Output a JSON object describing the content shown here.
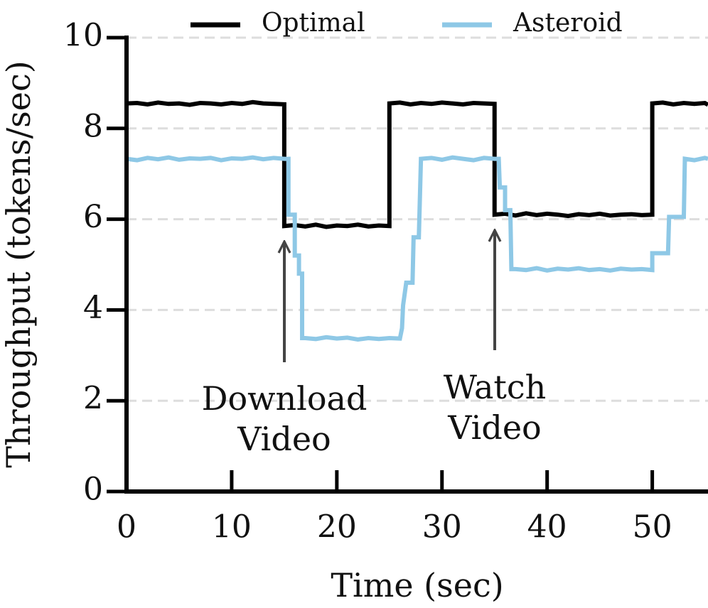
{
  "chart_data": {
    "type": "line",
    "xlabel": "Time (sec)",
    "ylabel": "Throughput (tokens/sec)",
    "xlim": [
      0,
      55.3
    ],
    "ylim": [
      0,
      10
    ],
    "xticks": [
      0,
      10,
      20,
      30,
      40,
      50
    ],
    "yticks": [
      0,
      2,
      4,
      6,
      8,
      10
    ],
    "grid": true,
    "legend": "top",
    "series": [
      {
        "name": "Optimal",
        "color": "#000000",
        "x": [
          0,
          1,
          2,
          3,
          4,
          5,
          6,
          7,
          8,
          9,
          10,
          11,
          12,
          13,
          14,
          15,
          15,
          16,
          17,
          18,
          19,
          20,
          21,
          22,
          23,
          24,
          25,
          25,
          26,
          27,
          28,
          29,
          30,
          31,
          32,
          33,
          34,
          35,
          35,
          36,
          37,
          38,
          39,
          40,
          41,
          42,
          43,
          44,
          45,
          46,
          47,
          48,
          49,
          50,
          50,
          51,
          52,
          53,
          54,
          55,
          55.3
        ],
        "values": [
          8.55,
          8.56,
          8.53,
          8.57,
          8.54,
          8.55,
          8.52,
          8.56,
          8.55,
          8.53,
          8.56,
          8.54,
          8.58,
          8.55,
          8.54,
          8.53,
          5.85,
          5.87,
          5.84,
          5.88,
          5.83,
          5.86,
          5.85,
          5.88,
          5.84,
          5.86,
          5.85,
          8.55,
          8.57,
          8.53,
          8.56,
          8.54,
          8.57,
          8.55,
          8.53,
          8.56,
          8.55,
          8.54,
          6.1,
          6.12,
          6.08,
          6.13,
          6.09,
          6.12,
          6.1,
          6.07,
          6.11,
          6.09,
          6.12,
          6.08,
          6.1,
          6.11,
          6.09,
          6.1,
          8.55,
          8.57,
          8.53,
          8.56,
          8.54,
          8.56,
          8.52
        ]
      },
      {
        "name": "Asteroid",
        "color": "#8ec8e6",
        "x": [
          0,
          1,
          2,
          3,
          4,
          5,
          6,
          7,
          8,
          9,
          10,
          11,
          12,
          13,
          14,
          15,
          15.4,
          15.4,
          16,
          16,
          16.4,
          16.4,
          16.7,
          16.7,
          17,
          18,
          19,
          20,
          21,
          22,
          23,
          24,
          25,
          26,
          26.2,
          26.3,
          26.6,
          27.2,
          27.3,
          27.8,
          28,
          29,
          30,
          31,
          32,
          33,
          34,
          35,
          35.4,
          35.5,
          36,
          36,
          36.5,
          36.6,
          37,
          38,
          39,
          40,
          41,
          42,
          43,
          44,
          45,
          46,
          47,
          48,
          49,
          50,
          50,
          51.5,
          51.6,
          53,
          53.1,
          54,
          55,
          55.3
        ],
        "values": [
          7.33,
          7.3,
          7.35,
          7.32,
          7.36,
          7.31,
          7.34,
          7.33,
          7.35,
          7.3,
          7.34,
          7.33,
          7.36,
          7.32,
          7.35,
          7.33,
          7.33,
          6.1,
          6.1,
          5.2,
          5.2,
          4.8,
          4.8,
          3.38,
          3.38,
          3.36,
          3.4,
          3.37,
          3.39,
          3.35,
          3.38,
          3.36,
          3.38,
          3.37,
          3.6,
          4.1,
          4.6,
          4.6,
          5.6,
          5.6,
          7.33,
          7.35,
          7.31,
          7.36,
          7.33,
          7.3,
          7.35,
          7.33,
          7.33,
          6.7,
          6.7,
          6.2,
          6.2,
          4.9,
          4.9,
          4.88,
          4.92,
          4.87,
          4.91,
          4.89,
          4.92,
          4.88,
          4.9,
          4.87,
          4.91,
          4.89,
          4.9,
          4.88,
          5.25,
          5.25,
          6.05,
          6.05,
          7.33,
          7.3,
          7.35,
          7.33
        ]
      }
    ],
    "annotations": [
      {
        "lines": [
          "Download",
          "Video"
        ]
      },
      {
        "lines": [
          "Watch",
          "Video"
        ]
      }
    ]
  }
}
